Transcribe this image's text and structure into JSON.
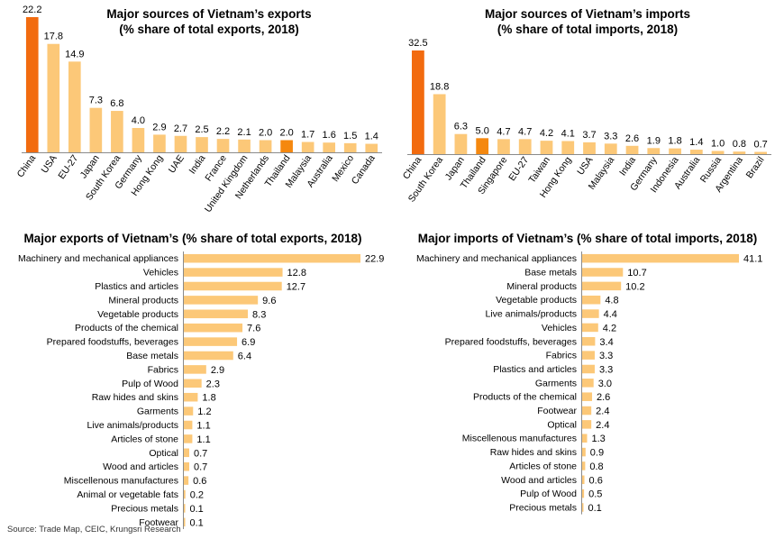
{
  "source": "Source: Trade Map, CEIC, Krungsri Research",
  "colors": {
    "bar": "#fcc878",
    "highlight_china": "#f26b0f",
    "highlight_thailand": "#f5880f",
    "axis": "#8a8a8a"
  },
  "chart_data": [
    {
      "id": "exports_by_country",
      "type": "bar",
      "title_line1": "Major sources of Vietnam’s exports",
      "title_line2": "(% share of total exports, 2018)",
      "categories": [
        "China",
        "USA",
        "EU-27",
        "Japan",
        "South Korea",
        "Germany",
        "Hong Kong",
        "UAE",
        "India",
        "France",
        "United Kingdom",
        "Netherlands",
        "Thailand",
        "Malaysia",
        "Australia",
        "Mexico",
        "Canada"
      ],
      "values": [
        22.2,
        17.8,
        14.9,
        7.3,
        6.8,
        4.0,
        2.9,
        2.7,
        2.5,
        2.2,
        2.1,
        2.0,
        2.0,
        1.7,
        1.6,
        1.5,
        1.4
      ],
      "labels": [
        "22.2",
        "17.8",
        "14.9",
        "7.3",
        "6.8",
        "4.0",
        "2.9",
        "2.7",
        "2.5",
        "2.2",
        "2.1",
        "2.0",
        "2.0",
        "1.7",
        "1.6",
        "1.5",
        "1.4"
      ],
      "highlight": {
        "China": "#f26b0f",
        "Thailand": "#f5880f"
      }
    },
    {
      "id": "imports_by_country",
      "type": "bar",
      "title_line1": "Major sources of Vietnam’s imports",
      "title_line2": "(% share of total imports, 2018)",
      "categories": [
        "China",
        "South Korea",
        "Japan",
        "Thailand",
        "Singapore",
        "EU-27",
        "Taiwan",
        "Hong Kong",
        "USA",
        "Malaysia",
        "India",
        "Germany",
        "Indonesia",
        "Australia",
        "Russia",
        "Argentina",
        "Brazil"
      ],
      "values": [
        32.5,
        18.8,
        6.3,
        5.0,
        4.7,
        4.7,
        4.2,
        4.1,
        3.7,
        3.3,
        2.6,
        1.9,
        1.8,
        1.4,
        1.0,
        0.8,
        0.7
      ],
      "labels": [
        "32.5",
        "18.8",
        "6.3",
        "5.0",
        "4.7",
        "4.7",
        "4.2",
        "4.1",
        "3.7",
        "3.3",
        "2.6",
        "1.9",
        "1.8",
        "1.4",
        "1.0",
        "0.8",
        "0.7"
      ],
      "highlight": {
        "China": "#f26b0f",
        "Thailand": "#f5880f"
      }
    },
    {
      "id": "exports_by_product",
      "type": "bar",
      "orientation": "horizontal",
      "title": "Major exports of Vietnam’s (% share of total exports, 2018)",
      "categories": [
        "Machinery and mechanical appliances",
        "Vehicles",
        "Plastics and articles",
        "Mineral products",
        "Vegetable products",
        "Products of the chemical",
        "Prepared foodstuffs, beverages",
        "Base metals",
        "Fabrics",
        "Pulp of Wood",
        "Raw hides and skins",
        "Garments",
        "Live animals/products",
        "Articles of stone",
        "Optical",
        "Wood and articles",
        "Miscellenous manufactures",
        "Animal or vegetable fats",
        "Precious metals",
        "Footwear"
      ],
      "values": [
        22.9,
        12.8,
        12.7,
        9.6,
        8.3,
        7.6,
        6.9,
        6.4,
        2.9,
        2.3,
        1.8,
        1.2,
        1.1,
        1.1,
        0.7,
        0.7,
        0.6,
        0.2,
        0.1,
        0.1
      ],
      "labels": [
        "22.9",
        "12.8",
        "12.7",
        "9.6",
        "8.3",
        "7.6",
        "6.9",
        "6.4",
        "2.9",
        "2.3",
        "1.8",
        "1.2",
        "1.1",
        "1.1",
        "0.7",
        "0.7",
        "0.6",
        "0.2",
        "0.1",
        "0.1"
      ]
    },
    {
      "id": "imports_by_product",
      "type": "bar",
      "orientation": "horizontal",
      "title": "Major imports of Vietnam’s (% share of total imports, 2018)",
      "categories": [
        "Machinery and mechanical appliances",
        "Base metals",
        "Mineral products",
        "Vegetable products",
        "Live animals/products",
        "Vehicles",
        "Prepared foodstuffs, beverages",
        "Fabrics",
        "Plastics and articles",
        "Garments",
        "Products of the chemical",
        "Footwear",
        "Optical",
        "Miscellenous manufactures",
        "Raw hides and skins",
        "Articles of stone",
        "Wood and articles",
        "Pulp of Wood",
        "Precious metals"
      ],
      "values": [
        41.1,
        10.7,
        10.2,
        4.8,
        4.4,
        4.2,
        3.4,
        3.3,
        3.3,
        3.0,
        2.6,
        2.4,
        2.4,
        1.3,
        0.9,
        0.8,
        0.6,
        0.5,
        0.1
      ],
      "labels": [
        "41.1",
        "10.7",
        "10.2",
        "4.8",
        "4.4",
        "4.2",
        "3.4",
        "3.3",
        "3.3",
        "3.0",
        "2.6",
        "2.4",
        "2.4",
        "1.3",
        "0.9",
        "0.8",
        "0.6",
        "0.5",
        "0.1"
      ]
    }
  ]
}
